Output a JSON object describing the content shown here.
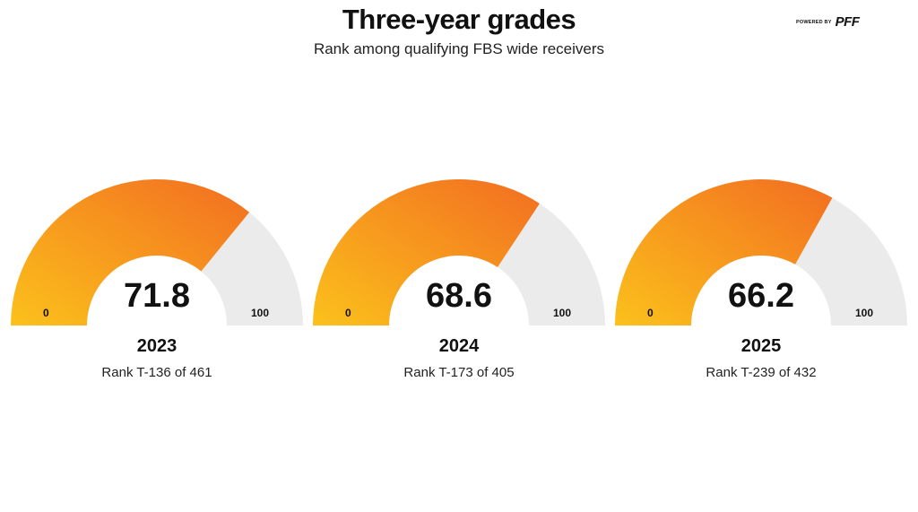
{
  "title": "Three-year grades",
  "subtitle": "Rank among qualifying FBS wide receivers",
  "logo": {
    "small_text": "POWERED BY",
    "main_text": "PFF"
  },
  "colors": {
    "gradient_start": "#FBC11B",
    "gradient_end": "#F26D21",
    "track": "#EBEBEB"
  },
  "chart_data": [
    {
      "type": "gauge",
      "year": "2023",
      "value": 71.8,
      "value_label": "71.8",
      "min": 0,
      "max": 100,
      "min_label": "0",
      "max_label": "100",
      "rank": "Rank T-136 of 461"
    },
    {
      "type": "gauge",
      "year": "2024",
      "value": 68.6,
      "value_label": "68.6",
      "min": 0,
      "max": 100,
      "min_label": "0",
      "max_label": "100",
      "rank": "Rank T-173 of 405"
    },
    {
      "type": "gauge",
      "year": "2025",
      "value": 66.2,
      "value_label": "66.2",
      "min": 0,
      "max": 100,
      "min_label": "0",
      "max_label": "100",
      "rank": "Rank T-239 of 432"
    }
  ]
}
